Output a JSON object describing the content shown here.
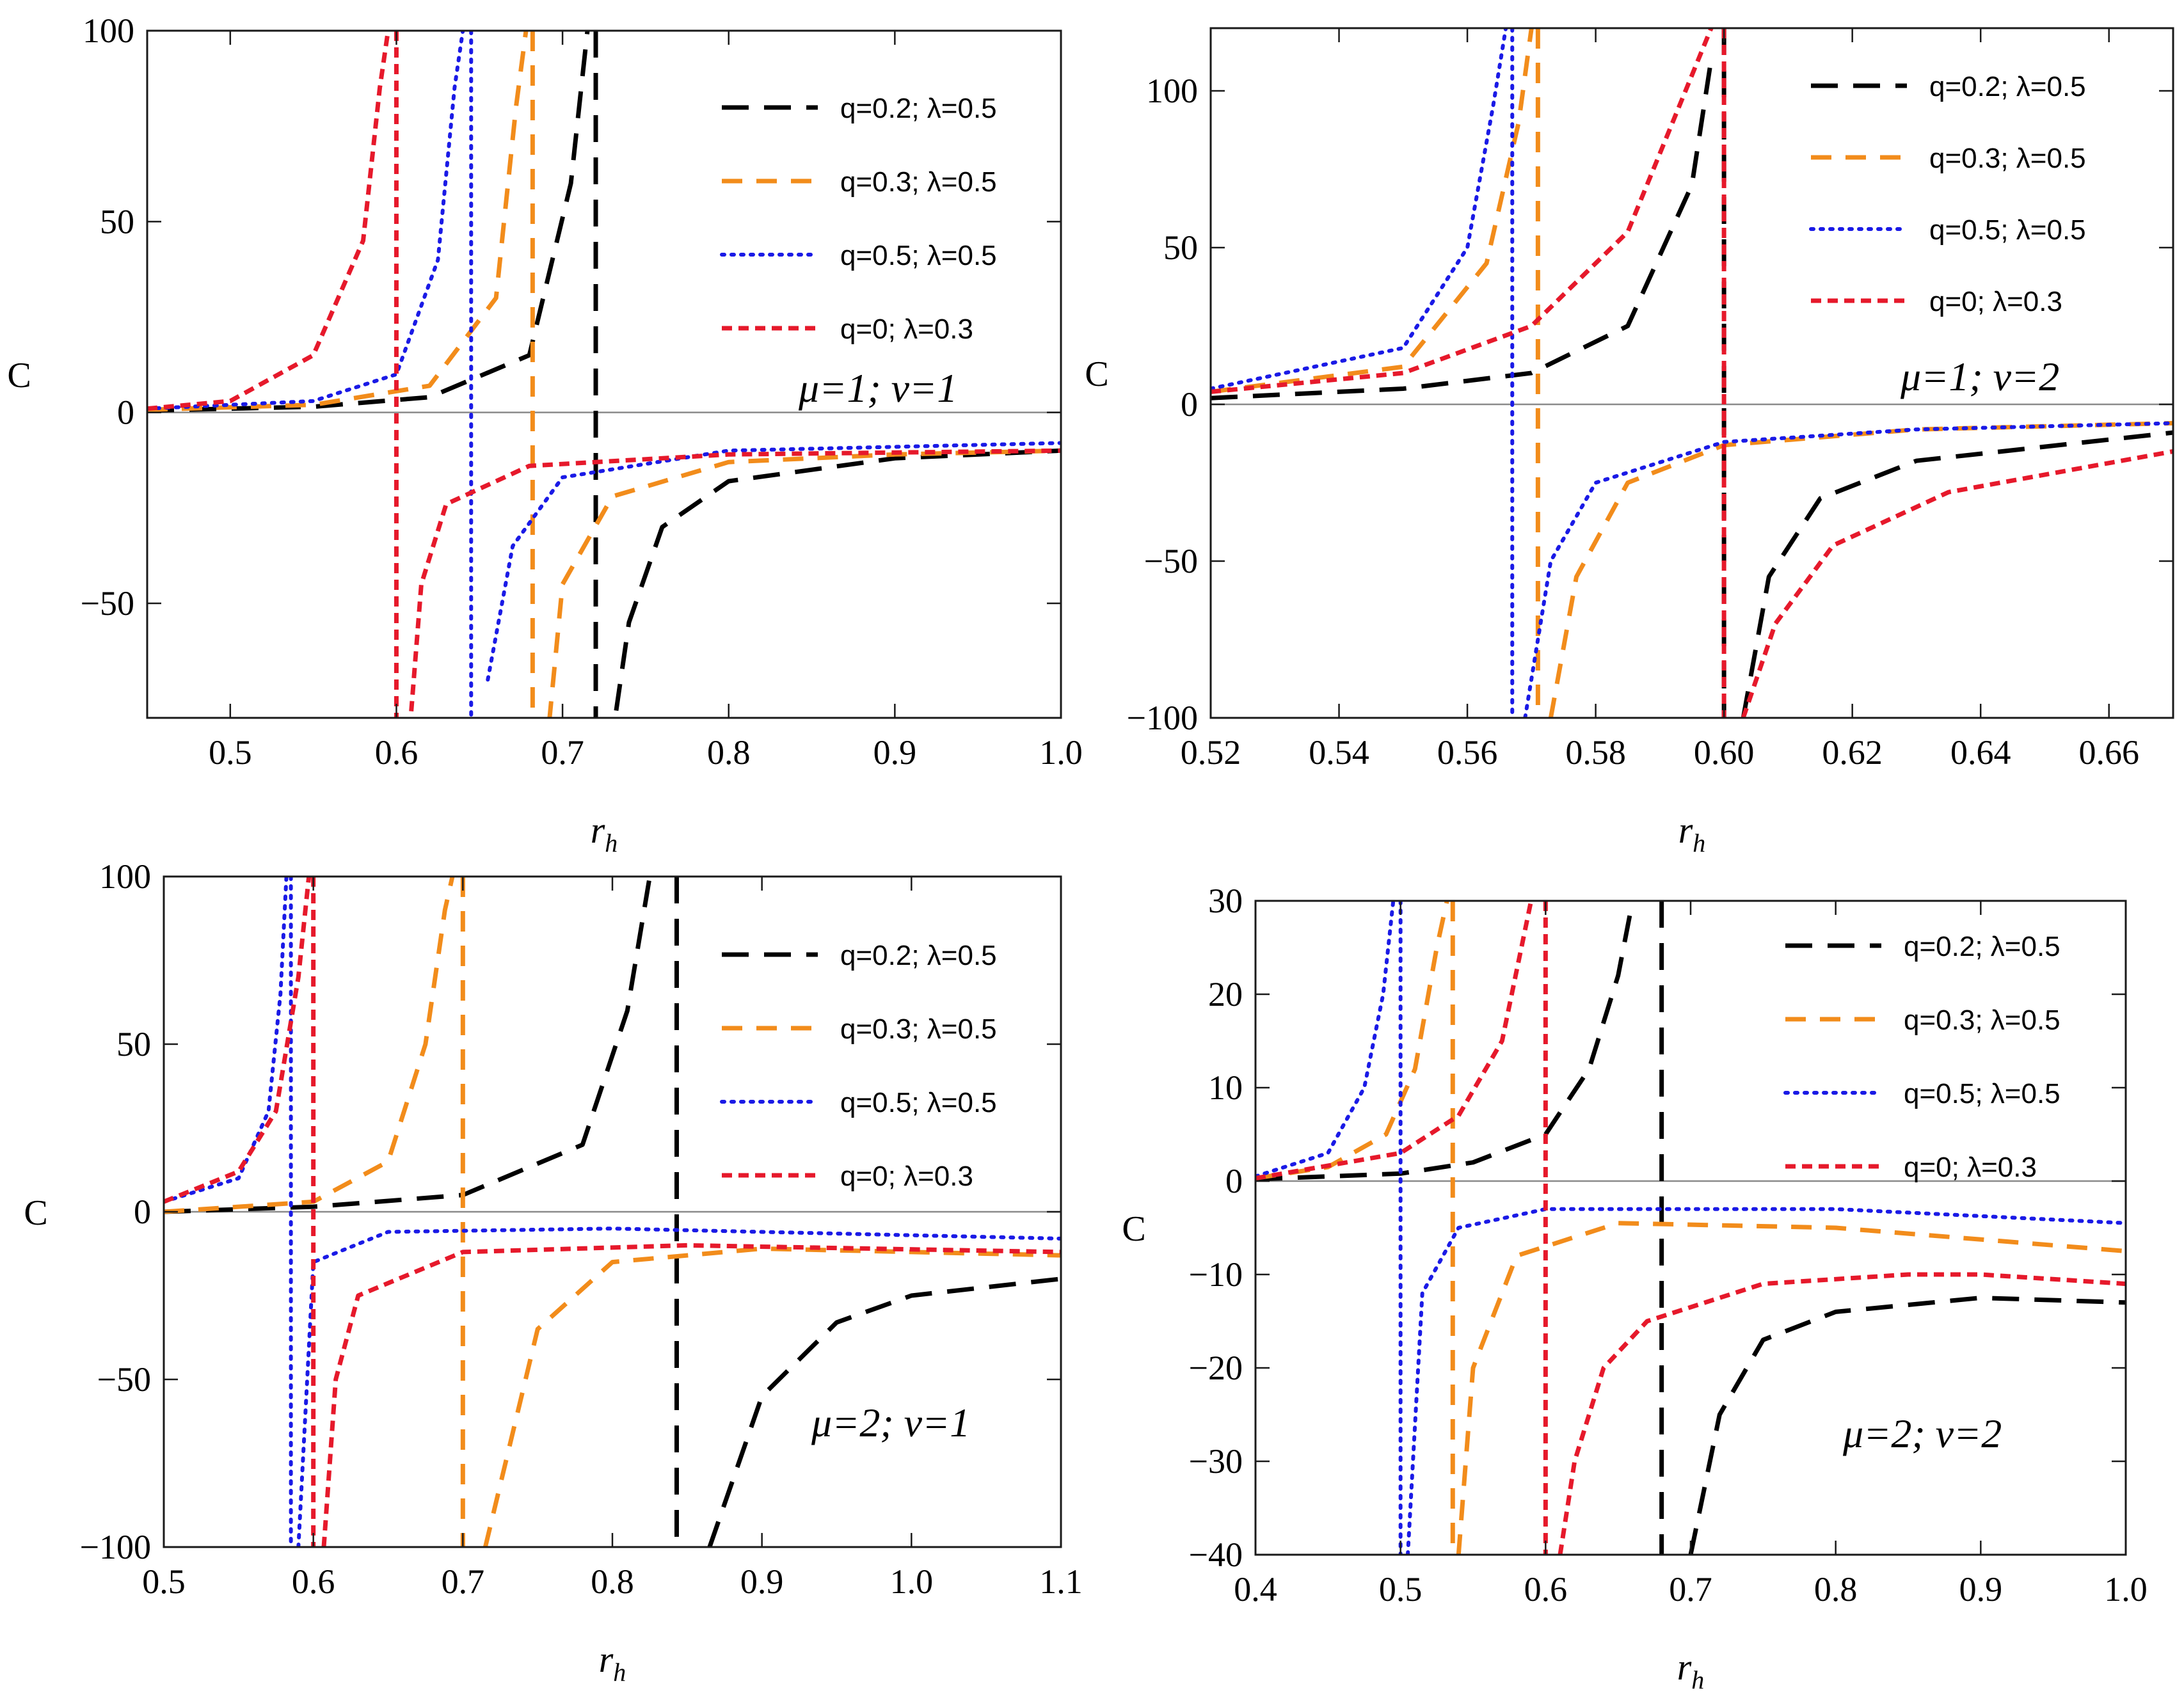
{
  "chart_data": [
    {
      "type": "line",
      "ylabel": "C",
      "xlabel": "r",
      "xlabel_sub": "h",
      "annotation": "μ=1; ν=1",
      "xlim": [
        0.45,
        1.0
      ],
      "ylim": [
        -80,
        100
      ],
      "xticks": [
        0.5,
        0.6,
        0.7,
        0.8,
        0.9,
        1.0
      ],
      "xtick_labels": [
        "0.5",
        "0.6",
        "0.7",
        "0.8",
        "0.9",
        "1.0"
      ],
      "yticks": [
        -50,
        0,
        50,
        100
      ],
      "ytick_labels": [
        "−50",
        "0",
        "50",
        "100"
      ],
      "legend_position": "top-right",
      "series": [
        {
          "name": "q=0.2; λ=0.5",
          "color": "#000000",
          "style": "long-dash",
          "x": [
            0.45,
            0.55,
            0.62,
            0.68,
            0.705,
            0.715,
            0.72,
            0.725,
            0.74,
            0.76,
            0.8,
            0.9,
            1.0
          ],
          "y": [
            0.5,
            1.5,
            4,
            15,
            60,
            100,
            null,
            -100,
            -55,
            -30,
            -18,
            -12,
            -10
          ]
        },
        {
          "name": "q=0.3; λ=0.5",
          "color": "#f28c1b",
          "style": "dash",
          "x": [
            0.45,
            0.55,
            0.62,
            0.66,
            0.672,
            0.678,
            0.682,
            0.69,
            0.7,
            0.73,
            0.8,
            0.9,
            1.0
          ],
          "y": [
            0.7,
            2,
            7,
            30,
            80,
            100,
            null,
            -90,
            -45,
            -22,
            -13,
            -11,
            -10
          ]
        },
        {
          "name": "q=0.5; λ=0.5",
          "color": "#1a1ae6",
          "style": "dot",
          "x": [
            0.45,
            0.55,
            0.6,
            0.625,
            0.635,
            0.64,
            0.645,
            0.655,
            0.67,
            0.7,
            0.8,
            0.9,
            1.0
          ],
          "y": [
            1,
            3,
            10,
            40,
            85,
            100,
            null,
            -70,
            -35,
            -17,
            -10,
            -9,
            -8
          ]
        },
        {
          "name": "q=0; λ=0.3",
          "color": "#e6192b",
          "style": "short-dash",
          "x": [
            0.45,
            0.5,
            0.55,
            0.58,
            0.59,
            0.595,
            0.6,
            0.605,
            0.615,
            0.63,
            0.68,
            0.8,
            1.0
          ],
          "y": [
            1,
            3,
            15,
            45,
            85,
            100,
            null,
            -100,
            -45,
            -24,
            -14,
            -11,
            -10
          ]
        }
      ]
    },
    {
      "type": "line",
      "ylabel": "C",
      "xlabel": "r",
      "xlabel_sub": "h",
      "annotation": "μ=1; ν=2",
      "xlim": [
        0.52,
        0.67
      ],
      "ylim": [
        -100,
        120
      ],
      "xticks": [
        0.52,
        0.54,
        0.56,
        0.58,
        0.6,
        0.62,
        0.64,
        0.66
      ],
      "xtick_labels": [
        "0.52",
        "0.54",
        "0.56",
        "0.58",
        "0.60",
        "0.62",
        "0.64",
        "0.66"
      ],
      "yticks": [
        -100,
        -50,
        0,
        50,
        100
      ],
      "ytick_labels": [
        "−100",
        "−50",
        "0",
        "50",
        "100"
      ],
      "legend_position": "top-right",
      "series": [
        {
          "name": "q=0.2; λ=0.5",
          "color": "#000000",
          "style": "long-dash",
          "x": [
            0.52,
            0.55,
            0.57,
            0.585,
            0.595,
            0.598,
            0.6,
            0.603,
            0.607,
            0.615,
            0.63,
            0.67
          ],
          "y": [
            2,
            5,
            10,
            25,
            70,
            110,
            null,
            -100,
            -55,
            -30,
            -18,
            -9
          ]
        },
        {
          "name": "q=0.3; λ=0.5",
          "color": "#f28c1b",
          "style": "dash",
          "x": [
            0.52,
            0.55,
            0.563,
            0.568,
            0.57,
            0.571,
            0.573,
            0.577,
            0.585,
            0.6,
            0.63,
            0.67
          ],
          "y": [
            4,
            12,
            45,
            90,
            120,
            null,
            -100,
            -55,
            -25,
            -13,
            -8,
            -6
          ]
        },
        {
          "name": "q=0.5; λ=0.5",
          "color": "#1a1ae6",
          "style": "dot",
          "x": [
            0.52,
            0.55,
            0.56,
            0.564,
            0.566,
            0.567,
            0.569,
            0.573,
            0.58,
            0.6,
            0.63,
            0.67
          ],
          "y": [
            5,
            18,
            50,
            95,
            120,
            null,
            -100,
            -50,
            -25,
            -12,
            -8,
            -6
          ]
        },
        {
          "name": "q=0; λ=0.3",
          "color": "#e6192b",
          "style": "short-dash",
          "x": [
            0.52,
            0.55,
            0.57,
            0.585,
            0.594,
            0.598,
            0.6,
            0.603,
            0.608,
            0.617,
            0.635,
            0.67
          ],
          "y": [
            4,
            10,
            25,
            55,
            100,
            120,
            null,
            -100,
            -70,
            -45,
            -28,
            -15
          ]
        }
      ]
    },
    {
      "type": "line",
      "ylabel": "C",
      "xlabel": "r",
      "xlabel_sub": "h",
      "annotation": "μ=2; ν=1",
      "xlim": [
        0.5,
        1.1
      ],
      "ylim": [
        -100,
        100
      ],
      "xticks": [
        0.5,
        0.6,
        0.7,
        0.8,
        0.9,
        1.0,
        1.1
      ],
      "xtick_labels": [
        "0.5",
        "0.6",
        "0.7",
        "0.8",
        "0.9",
        "1.0",
        "1.1"
      ],
      "yticks": [
        -100,
        -50,
        0,
        50,
        100
      ],
      "ytick_labels": [
        "−100",
        "−50",
        "0",
        "50",
        "100"
      ],
      "legend_position": "top-right",
      "series": [
        {
          "name": "q=0.2; λ=0.5",
          "color": "#000000",
          "style": "long-dash",
          "x": [
            0.5,
            0.6,
            0.7,
            0.78,
            0.81,
            0.825,
            0.843,
            0.865,
            0.9,
            0.95,
            1.0,
            1.1
          ],
          "y": [
            0,
            1.5,
            5,
            20,
            60,
            100,
            null,
            -100,
            -55,
            -33,
            -25,
            -20
          ]
        },
        {
          "name": "q=0.3; λ=0.5",
          "color": "#f28c1b",
          "style": "dash",
          "x": [
            0.5,
            0.6,
            0.65,
            0.675,
            0.688,
            0.693,
            0.7,
            0.715,
            0.75,
            0.8,
            0.9,
            1.1
          ],
          "y": [
            0,
            3,
            15,
            50,
            90,
            100,
            null,
            -100,
            -35,
            -15,
            -11,
            -13
          ]
        },
        {
          "name": "q=0.5; λ=0.5",
          "color": "#1a1ae6",
          "style": "dot",
          "x": [
            0.5,
            0.55,
            0.57,
            0.578,
            0.582,
            0.585,
            0.59,
            0.6,
            0.65,
            0.8,
            1.1
          ],
          "y": [
            3,
            10,
            30,
            65,
            100,
            null,
            -100,
            -15,
            -6,
            -5,
            -8
          ]
        },
        {
          "name": "q=0; λ=0.3",
          "color": "#e6192b",
          "style": "short-dash",
          "x": [
            0.5,
            0.55,
            0.575,
            0.59,
            0.597,
            0.6,
            0.607,
            0.615,
            0.63,
            0.7,
            0.85,
            1.1
          ],
          "y": [
            3,
            12,
            30,
            70,
            100,
            null,
            -100,
            -50,
            -25,
            -12,
            -10,
            -12
          ]
        }
      ]
    },
    {
      "type": "line",
      "ylabel": "C",
      "xlabel": "r",
      "xlabel_sub": "h",
      "annotation": "μ=2; ν=2",
      "xlim": [
        0.4,
        1.0
      ],
      "ylim": [
        -40,
        30
      ],
      "xticks": [
        0.4,
        0.5,
        0.6,
        0.7,
        0.8,
        0.9,
        1.0
      ],
      "xtick_labels": [
        "0.4",
        "0.5",
        "0.6",
        "0.7",
        "0.8",
        "0.9",
        "1.0"
      ],
      "yticks": [
        -40,
        -30,
        -20,
        -10,
        0,
        10,
        20,
        30
      ],
      "ytick_labels": [
        "−40",
        "−30",
        "−20",
        "−10",
        "0",
        "10",
        "20",
        "30"
      ],
      "legend_position": "top-right",
      "series": [
        {
          "name": "q=0.2; λ=0.5",
          "color": "#000000",
          "style": "long-dash",
          "x": [
            0.4,
            0.5,
            0.55,
            0.6,
            0.63,
            0.65,
            0.66,
            0.68,
            0.7,
            0.72,
            0.75,
            0.8,
            0.9,
            1.0
          ],
          "y": [
            0.2,
            0.8,
            2,
            5,
            12,
            22,
            30,
            null,
            -40,
            -25,
            -17,
            -14,
            -12.5,
            -13
          ]
        },
        {
          "name": "q=0.3; λ=0.5",
          "color": "#f28c1b",
          "style": "dash",
          "x": [
            0.4,
            0.45,
            0.49,
            0.51,
            0.525,
            0.532,
            0.536,
            0.54,
            0.55,
            0.58,
            0.65,
            0.8,
            1.0
          ],
          "y": [
            0.3,
            1.5,
            5,
            12,
            25,
            30,
            null,
            -40,
            -20,
            -8,
            -4.5,
            -5,
            -7.5
          ]
        },
        {
          "name": "q=0.5; λ=0.5",
          "color": "#1a1ae6",
          "style": "dot",
          "x": [
            0.4,
            0.45,
            0.475,
            0.488,
            0.495,
            0.5,
            0.505,
            0.515,
            0.54,
            0.6,
            0.8,
            1.0
          ],
          "y": [
            0.5,
            3,
            10,
            20,
            30,
            null,
            -40,
            -12,
            -5,
            -3,
            -3,
            -4.5
          ]
        },
        {
          "name": "q=0; λ=0.3",
          "color": "#e6192b",
          "style": "short-dash",
          "x": [
            0.4,
            0.5,
            0.54,
            0.57,
            0.59,
            0.6,
            0.61,
            0.62,
            0.64,
            0.67,
            0.75,
            0.85,
            0.9,
            1.0
          ],
          "y": [
            0.3,
            3,
            7,
            15,
            30,
            null,
            -40,
            -30,
            -20,
            -15,
            -11,
            -10,
            -10,
            -11
          ]
        }
      ]
    }
  ]
}
